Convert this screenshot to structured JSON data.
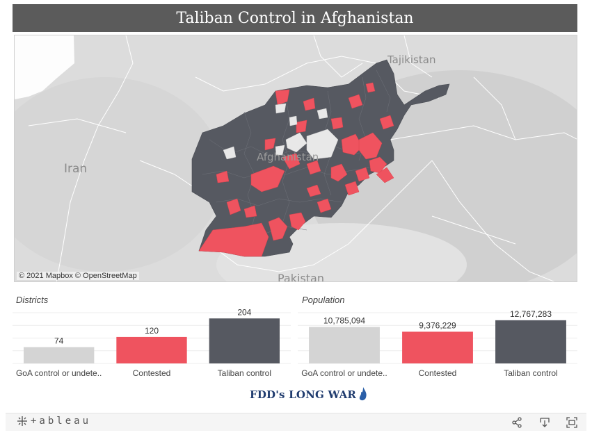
{
  "title": "Taliban Control in Afghanistan",
  "map": {
    "labels": {
      "tajikistan": "Tajikistan",
      "iran": "Iran",
      "afghanistan": "Afghanistan",
      "pakistan": "Pakistan"
    },
    "attribution": "© 2021 Mapbox © OpenStreetMap",
    "colors": {
      "background": "#dcdcdc",
      "taliban": "#565961",
      "contested": "#ef535f",
      "goa": "#e8e8e8"
    }
  },
  "charts": {
    "districts": {
      "title": "Districts",
      "chart_data": {
        "type": "bar",
        "categories": [
          "GoA control or undete..",
          "Contested",
          "Taliban control"
        ],
        "values": [
          74,
          120,
          204
        ],
        "value_labels": [
          "74",
          "120",
          "204"
        ],
        "ylim": [
          0,
          230
        ],
        "grid": true,
        "colors": [
          "#d4d4d4",
          "#ef535f",
          "#565961"
        ]
      }
    },
    "population": {
      "title": "Population",
      "chart_data": {
        "type": "bar",
        "categories": [
          "GoA control or undete..",
          "Contested",
          "Taliban control"
        ],
        "values": [
          10785094,
          9376229,
          12767283
        ],
        "value_labels": [
          "10,785,094",
          "9,376,229",
          "12,767,283"
        ],
        "ylim": [
          0,
          15000000
        ],
        "grid": true,
        "colors": [
          "#d4d4d4",
          "#ef535f",
          "#565961"
        ]
      }
    }
  },
  "logo": {
    "text": "FDD's LONG WAR"
  },
  "footer": {
    "brand": "+ableau",
    "icons": [
      "tableau-logo-icon",
      "share-icon",
      "download-icon",
      "fullscreen-icon"
    ]
  }
}
